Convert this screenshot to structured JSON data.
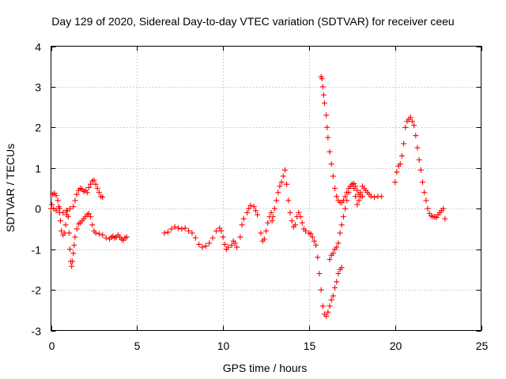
{
  "chart_data": {
    "type": "scatter",
    "title": "Day 129 of 2020, Sidereal Day-to-day VTEC variation (SDTVAR) for receiver ceeu",
    "xlabel": "GPS time / hours",
    "ylabel": "SDTVAR / TECUs",
    "xlim": [
      0,
      25
    ],
    "ylim": [
      -3,
      4
    ],
    "xticks": [
      "0",
      "5",
      "10",
      "15",
      "20",
      "25"
    ],
    "yticks": [
      "4",
      "3",
      "2",
      "1",
      "0",
      "-1",
      "-2",
      "-3"
    ],
    "grid": true,
    "marker": "+",
    "color": "#ff0000",
    "series": [
      {
        "points": [
          [
            0.0,
            0.0
          ],
          [
            0.1,
            0.35
          ],
          [
            0.2,
            0.38
          ],
          [
            0.3,
            0.32
          ],
          [
            0.4,
            0.2
          ],
          [
            0.45,
            0.05
          ],
          [
            0.5,
            -0.1
          ],
          [
            0.55,
            -0.3
          ],
          [
            0.6,
            -0.55
          ],
          [
            0.7,
            -0.65
          ],
          [
            0.8,
            -0.6
          ],
          [
            0.85,
            -0.4
          ],
          [
            0.9,
            -0.15
          ],
          [
            0.95,
            -0.05
          ],
          [
            1.0,
            -0.2
          ],
          [
            1.05,
            -0.6
          ],
          [
            1.1,
            -1.0
          ],
          [
            1.15,
            -1.3
          ],
          [
            1.2,
            -1.42
          ],
          [
            1.25,
            -1.3
          ],
          [
            1.3,
            -1.1
          ],
          [
            1.35,
            -0.9
          ],
          [
            1.4,
            -0.7
          ],
          [
            1.5,
            -0.5
          ],
          [
            1.6,
            -0.38
          ],
          [
            1.7,
            -0.35
          ],
          [
            1.8,
            -0.3
          ],
          [
            1.9,
            -0.25
          ],
          [
            2.0,
            -0.2
          ],
          [
            2.1,
            -0.15
          ],
          [
            2.2,
            -0.12
          ],
          [
            2.3,
            -0.2
          ],
          [
            2.4,
            -0.4
          ],
          [
            2.5,
            -0.55
          ],
          [
            2.6,
            -0.6
          ],
          [
            2.8,
            -0.62
          ],
          [
            3.0,
            -0.65
          ],
          [
            3.2,
            -0.72
          ],
          [
            3.4,
            -0.75
          ],
          [
            3.5,
            -0.7
          ],
          [
            3.6,
            -0.68
          ],
          [
            3.7,
            -0.72
          ],
          [
            3.8,
            -0.7
          ],
          [
            3.9,
            -0.65
          ],
          [
            4.0,
            -0.7
          ],
          [
            4.1,
            -0.75
          ],
          [
            4.2,
            -0.78
          ],
          [
            4.3,
            -0.72
          ],
          [
            4.4,
            -0.7
          ]
        ]
      },
      {
        "points": [
          [
            0.05,
            0.1
          ],
          [
            0.15,
            0.0
          ],
          [
            0.3,
            -0.05
          ],
          [
            0.5,
            0.0
          ],
          [
            0.7,
            -0.1
          ],
          [
            0.9,
            -0.05
          ],
          [
            1.1,
            0.0
          ],
          [
            1.3,
            0.05
          ],
          [
            1.4,
            0.2
          ],
          [
            1.5,
            0.35
          ],
          [
            1.6,
            0.45
          ],
          [
            1.7,
            0.5
          ],
          [
            1.8,
            0.48
          ],
          [
            1.9,
            0.42
          ],
          [
            2.0,
            0.45
          ],
          [
            2.1,
            0.4
          ],
          [
            2.2,
            0.52
          ],
          [
            2.3,
            0.6
          ],
          [
            2.4,
            0.68
          ],
          [
            2.5,
            0.7
          ],
          [
            2.6,
            0.6
          ],
          [
            2.7,
            0.5
          ],
          [
            2.8,
            0.4
          ],
          [
            2.9,
            0.3
          ],
          [
            3.0,
            0.28
          ]
        ]
      },
      {
        "points": [
          [
            6.6,
            -0.6
          ],
          [
            6.8,
            -0.58
          ],
          [
            7.0,
            -0.5
          ],
          [
            7.2,
            -0.45
          ],
          [
            7.4,
            -0.48
          ],
          [
            7.6,
            -0.5
          ],
          [
            7.8,
            -0.48
          ],
          [
            8.0,
            -0.55
          ],
          [
            8.2,
            -0.6
          ],
          [
            8.4,
            -0.72
          ],
          [
            8.6,
            -0.88
          ],
          [
            8.8,
            -0.95
          ],
          [
            9.0,
            -0.92
          ],
          [
            9.2,
            -0.85
          ],
          [
            9.4,
            -0.72
          ],
          [
            9.6,
            -0.55
          ],
          [
            9.8,
            -0.48
          ],
          [
            9.9,
            -0.55
          ],
          [
            10.0,
            -0.7
          ],
          [
            10.1,
            -0.88
          ],
          [
            10.2,
            -1.0
          ],
          [
            10.3,
            -0.95
          ],
          [
            10.5,
            -0.9
          ],
          [
            10.6,
            -0.8
          ],
          [
            10.7,
            -0.85
          ],
          [
            10.8,
            -0.95
          ],
          [
            11.0,
            -0.7
          ],
          [
            11.1,
            -0.4
          ],
          [
            11.2,
            -0.25
          ],
          [
            11.4,
            -0.1
          ],
          [
            11.5,
            0.0
          ],
          [
            11.6,
            0.08
          ],
          [
            11.8,
            0.05
          ],
          [
            11.9,
            -0.05
          ],
          [
            12.0,
            -0.15
          ],
          [
            12.2,
            -0.6
          ],
          [
            12.3,
            -0.8
          ],
          [
            12.4,
            -0.75
          ],
          [
            12.5,
            -0.55
          ],
          [
            12.6,
            -0.35
          ],
          [
            12.7,
            -0.2
          ],
          [
            12.8,
            -0.1
          ],
          [
            12.85,
            -0.3
          ],
          [
            12.9,
            -0.2
          ],
          [
            13.0,
            0.0
          ],
          [
            13.1,
            0.2
          ],
          [
            13.2,
            0.4
          ],
          [
            13.3,
            0.55
          ],
          [
            13.4,
            0.65
          ],
          [
            13.5,
            0.8
          ],
          [
            13.6,
            0.95
          ],
          [
            13.7,
            0.6
          ],
          [
            13.8,
            0.2
          ],
          [
            13.9,
            -0.1
          ],
          [
            14.0,
            -0.3
          ],
          [
            14.1,
            -0.45
          ],
          [
            14.2,
            -0.4
          ],
          [
            14.3,
            -0.2
          ],
          [
            14.4,
            -0.1
          ],
          [
            14.5,
            -0.2
          ],
          [
            14.6,
            -0.35
          ],
          [
            14.7,
            -0.5
          ],
          [
            14.8,
            -0.55
          ],
          [
            15.0,
            -0.6
          ],
          [
            15.1,
            -0.62
          ],
          [
            15.2,
            -0.7
          ],
          [
            15.3,
            -0.8
          ],
          [
            15.4,
            -0.9
          ],
          [
            15.5,
            -1.2
          ],
          [
            15.6,
            -1.6
          ],
          [
            15.7,
            -2.0
          ],
          [
            15.8,
            -2.4
          ],
          [
            15.9,
            -2.6
          ],
          [
            16.0,
            -2.65
          ],
          [
            16.1,
            -2.55
          ],
          [
            16.2,
            -2.4
          ],
          [
            16.3,
            -2.25
          ],
          [
            16.4,
            -2.15
          ],
          [
            16.5,
            -1.95
          ],
          [
            16.6,
            -1.8
          ],
          [
            16.7,
            -1.6
          ],
          [
            16.8,
            -1.5
          ],
          [
            16.9,
            -1.45
          ]
        ]
      },
      {
        "points": [
          [
            15.7,
            3.25
          ],
          [
            15.75,
            3.2
          ],
          [
            15.8,
            3.0
          ],
          [
            15.85,
            2.8
          ],
          [
            15.9,
            2.6
          ],
          [
            16.0,
            2.3
          ],
          [
            16.05,
            2.0
          ],
          [
            16.1,
            1.75
          ],
          [
            16.2,
            1.4
          ],
          [
            16.3,
            1.1
          ],
          [
            16.4,
            0.8
          ],
          [
            16.5,
            0.5
          ],
          [
            16.6,
            0.3
          ],
          [
            16.7,
            0.2
          ],
          [
            16.8,
            0.15
          ],
          [
            16.9,
            0.15
          ],
          [
            17.0,
            0.2
          ],
          [
            17.1,
            0.3
          ],
          [
            17.2,
            0.4
          ],
          [
            17.3,
            0.5
          ],
          [
            17.4,
            0.55
          ],
          [
            17.5,
            0.6
          ],
          [
            17.6,
            0.5
          ],
          [
            17.7,
            0.3
          ],
          [
            17.8,
            0.1
          ],
          [
            17.9,
            0.2
          ],
          [
            18.0,
            0.4
          ],
          [
            18.1,
            0.55
          ],
          [
            18.2,
            0.5
          ],
          [
            18.3,
            0.45
          ],
          [
            18.4,
            0.4
          ],
          [
            18.5,
            0.35
          ],
          [
            18.6,
            0.3
          ],
          [
            18.8,
            0.28
          ],
          [
            19.0,
            0.3
          ],
          [
            19.2,
            0.3
          ]
        ]
      },
      {
        "points": [
          [
            16.2,
            -1.25
          ],
          [
            16.3,
            -1.15
          ],
          [
            16.4,
            -1.1
          ],
          [
            16.5,
            -1.0
          ],
          [
            16.6,
            -0.95
          ],
          [
            16.7,
            -0.85
          ],
          [
            16.8,
            -0.6
          ],
          [
            16.9,
            -0.4
          ],
          [
            17.0,
            -0.2
          ],
          [
            17.1,
            0.0
          ],
          [
            17.2,
            0.2
          ],
          [
            17.3,
            0.4
          ],
          [
            17.4,
            0.55
          ],
          [
            17.5,
            0.6
          ],
          [
            17.6,
            0.62
          ],
          [
            17.7,
            0.55
          ],
          [
            17.8,
            0.45
          ],
          [
            17.9,
            0.35
          ],
          [
            18.0,
            0.3
          ],
          [
            18.1,
            0.3
          ]
        ]
      },
      {
        "points": [
          [
            20.0,
            0.65
          ],
          [
            20.1,
            0.9
          ],
          [
            20.2,
            1.05
          ],
          [
            20.3,
            1.1
          ],
          [
            20.4,
            1.3
          ],
          [
            20.5,
            1.6
          ],
          [
            20.6,
            2.0
          ],
          [
            20.7,
            2.15
          ],
          [
            20.8,
            2.2
          ],
          [
            20.9,
            2.25
          ],
          [
            21.0,
            2.15
          ],
          [
            21.1,
            2.05
          ],
          [
            21.2,
            1.8
          ],
          [
            21.3,
            1.5
          ],
          [
            21.4,
            1.2
          ],
          [
            21.5,
            0.95
          ],
          [
            21.6,
            0.65
          ],
          [
            21.7,
            0.4
          ],
          [
            21.8,
            0.2
          ],
          [
            21.9,
            0.0
          ],
          [
            22.0,
            -0.12
          ],
          [
            22.1,
            -0.18
          ],
          [
            22.2,
            -0.2
          ],
          [
            22.3,
            -0.2
          ],
          [
            22.4,
            -0.22
          ],
          [
            22.5,
            -0.15
          ],
          [
            22.6,
            -0.1
          ],
          [
            22.7,
            -0.05
          ],
          [
            22.8,
            0.0
          ],
          [
            22.9,
            -0.25
          ]
        ]
      }
    ]
  }
}
